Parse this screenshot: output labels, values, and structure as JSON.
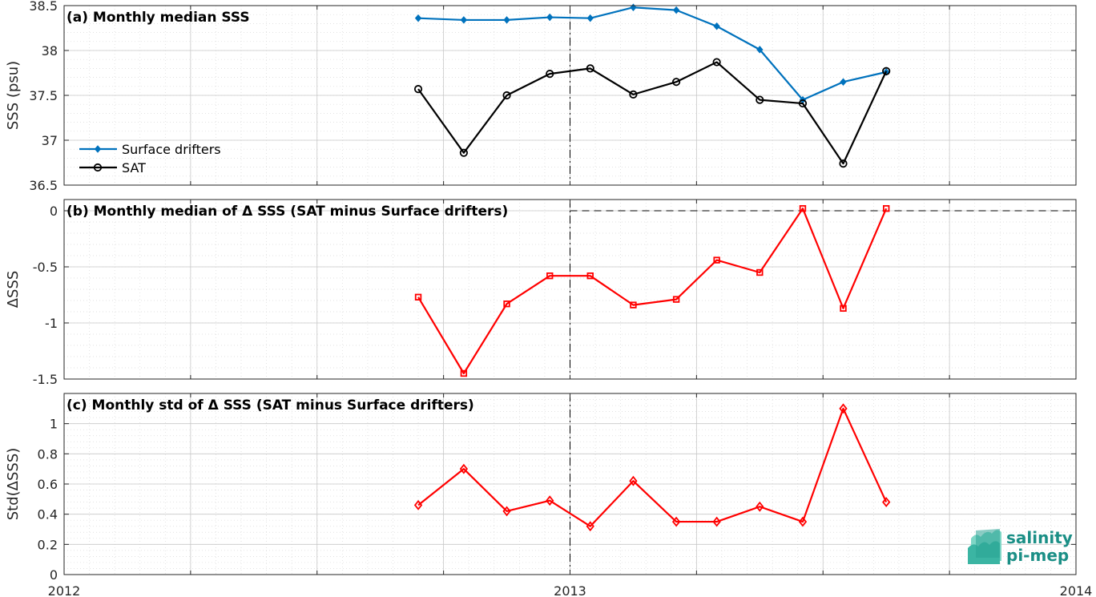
{
  "chart_data": [
    {
      "type": "line",
      "title": "(a) Monthly median SSS",
      "ylabel": "SSS (psu)",
      "xlim": [
        2012,
        2014
      ],
      "ylim": [
        36.5,
        38.5
      ],
      "yticks": [
        36.5,
        37,
        37.5,
        38,
        38.5
      ],
      "ytick_labels": [
        "36.5",
        "37",
        "37.5",
        "38",
        "38.5"
      ],
      "grid": true,
      "legend_position": "bottom-left",
      "x": [
        2012.7,
        2012.79,
        2012.875,
        2012.96,
        2013.04,
        2013.125,
        2013.21,
        2013.29,
        2013.375,
        2013.46,
        2013.54,
        2013.625
      ],
      "series": [
        {
          "name": "Surface drifters",
          "color": "#0072BD",
          "marker": "diamond-filled",
          "values": [
            38.36,
            38.34,
            38.34,
            38.37,
            38.36,
            38.48,
            38.45,
            38.27,
            38.01,
            37.45,
            37.65,
            37.76
          ]
        },
        {
          "name": "SAT",
          "color": "#000000",
          "marker": "circle-open",
          "values": [
            37.57,
            36.86,
            37.5,
            37.74,
            37.8,
            37.51,
            37.65,
            37.87,
            37.45,
            37.41,
            36.74,
            37.77
          ]
        }
      ]
    },
    {
      "type": "line",
      "title": "(b) Monthly median of Δ SSS (SAT minus Surface drifters)",
      "ylabel": "ΔSSS",
      "xlim": [
        2012,
        2014
      ],
      "ylim": [
        -1.5,
        0.1
      ],
      "yticks": [
        -1.5,
        -1,
        -0.5,
        0
      ],
      "ytick_labels": [
        "-1.5",
        "-1",
        "-0.5",
        "0"
      ],
      "grid": true,
      "reference_line": 0,
      "x": [
        2012.7,
        2012.79,
        2012.875,
        2012.96,
        2013.04,
        2013.125,
        2013.21,
        2013.29,
        2013.375,
        2013.46,
        2013.54,
        2013.625
      ],
      "series": [
        {
          "color": "#FF0000",
          "marker": "square-open",
          "values": [
            -0.77,
            -1.45,
            -0.83,
            -0.58,
            -0.58,
            -0.84,
            -0.79,
            -0.44,
            -0.55,
            0.02,
            -0.87,
            0.02
          ]
        }
      ]
    },
    {
      "type": "line",
      "title": "(c) Monthly std of Δ SSS (SAT minus Surface drifters)",
      "ylabel": "Std(ΔSSS)",
      "xlim": [
        2012,
        2014
      ],
      "ylim": [
        0,
        1.2
      ],
      "yticks": [
        0,
        0.2,
        0.4,
        0.6,
        0.8,
        1
      ],
      "ytick_labels": [
        "0",
        "0.2",
        "0.4",
        "0.6",
        "0.8",
        "1"
      ],
      "xticks": [
        2012,
        2013,
        2014
      ],
      "xtick_labels": [
        "2012",
        "2013",
        "2014"
      ],
      "grid": true,
      "x": [
        2012.7,
        2012.79,
        2012.875,
        2012.96,
        2013.04,
        2013.125,
        2013.21,
        2013.29,
        2013.375,
        2013.46,
        2013.54,
        2013.625
      ],
      "series": [
        {
          "color": "#FF0000",
          "marker": "diamond-open",
          "values": [
            0.46,
            0.7,
            0.42,
            0.49,
            0.32,
            0.62,
            0.35,
            0.35,
            0.45,
            0.35,
            1.1,
            0.48
          ]
        }
      ]
    }
  ],
  "vertical_marker_year": 2013,
  "logo": {
    "line1": "salinity",
    "line2": "pi-mep",
    "color": "#1b8f86"
  }
}
